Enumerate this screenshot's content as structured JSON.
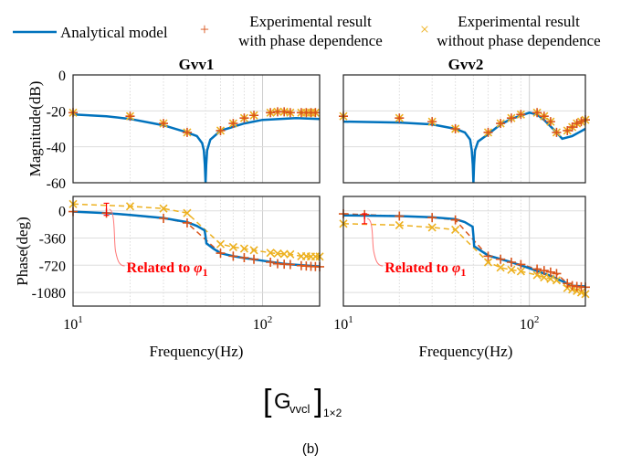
{
  "legend": {
    "analytical": "Analytical model",
    "with_phase": [
      "Experimental result",
      "with phase dependence"
    ],
    "without_phase": [
      "Experimental result",
      "without phase dependence"
    ]
  },
  "colors": {
    "analytical": "#0072BD",
    "with_phase": "#D95319",
    "without_phase": "#EDB120",
    "annotation": "#FF0000"
  },
  "caption": {
    "main": "G",
    "sub": "vvcl",
    "size": "1×2",
    "label": "(b)"
  },
  "chart_data": [
    {
      "type": "line",
      "title": "Gvv1",
      "xlabel": "Frequency(Hz)",
      "xscale": "log",
      "xlim": [
        10,
        200
      ],
      "xticks": [
        "10^1",
        "10^2"
      ],
      "grid": true,
      "magnitude": {
        "ylabel": "Magnitude(dB)",
        "ylim": [
          -60,
          0
        ],
        "yticks": [
          "0",
          "-20",
          "-40",
          "-60"
        ],
        "analytical": {
          "x": [
            10,
            15,
            20,
            30,
            40,
            45,
            48,
            49,
            49.6,
            50,
            50.4,
            51,
            53,
            60,
            80,
            100,
            150,
            200
          ],
          "y": [
            -22,
            -23,
            -24.5,
            -28,
            -32,
            -34,
            -38,
            -42,
            -50,
            -60,
            -50,
            -42,
            -36,
            -31,
            -27,
            -25,
            -24,
            -24.5
          ]
        },
        "with_phase": {
          "x": [
            10,
            20,
            30,
            40,
            60,
            70,
            80,
            90,
            110,
            120,
            130,
            140,
            160,
            170,
            180,
            190
          ],
          "y": [
            -21,
            -23,
            -27,
            -32,
            -31,
            -27,
            -24,
            -22.5,
            -21,
            -20.5,
            -20.5,
            -21,
            -21,
            -21,
            -21,
            -21
          ]
        },
        "without_phase": {
          "x": [
            10,
            20,
            30,
            40,
            60,
            70,
            80,
            90,
            110,
            120,
            130,
            140,
            160,
            170,
            180,
            190
          ],
          "y": [
            -21,
            -23,
            -27,
            -32,
            -31,
            -27,
            -24,
            -22.5,
            -21,
            -20.5,
            -20.5,
            -21,
            -21,
            -21,
            -21,
            -21
          ]
        }
      },
      "phase": {
        "ylabel": "Phase(deg)",
        "ylim": [
          -1260,
          190
        ],
        "yticks": [
          "0",
          "-360",
          "-720",
          "-1080"
        ],
        "analytical": {
          "x": [
            10,
            15,
            20,
            30,
            40,
            45,
            49.5,
            50,
            50.5,
            55,
            60,
            70,
            80,
            100,
            130,
            160,
            200
          ],
          "y": [
            -10,
            -30,
            -55,
            -95,
            -150,
            -200,
            -260,
            -340,
            -430,
            -500,
            -560,
            -600,
            -625,
            -660,
            -700,
            -720,
            -735
          ]
        },
        "with_phase": {
          "x": [
            10,
            15,
            30,
            40,
            60,
            70,
            80,
            90,
            110,
            120,
            130,
            140,
            160,
            170,
            180,
            190,
            200
          ],
          "y": [
            -10,
            -30,
            -100,
            -160,
            -560,
            -600,
            -620,
            -640,
            -680,
            -700,
            -705,
            -710,
            -725,
            -730,
            -735,
            -738,
            -740
          ]
        },
        "without_phase": {
          "x": [
            10,
            20,
            30,
            40,
            60,
            70,
            80,
            90,
            110,
            120,
            130,
            140,
            160,
            170,
            180,
            190,
            200
          ],
          "y": [
            90,
            60,
            30,
            -30,
            -440,
            -480,
            -500,
            -520,
            -555,
            -565,
            -570,
            -575,
            -600,
            -600,
            -605,
            -605,
            -605
          ]
        },
        "annotation": {
          "text": "Related to ",
          "symbol": "φ",
          "sub": "1",
          "x": 15
        }
      }
    },
    {
      "type": "line",
      "title": "Gvv2",
      "xlabel": "Frequency(Hz)",
      "xscale": "log",
      "xlim": [
        10,
        200
      ],
      "xticks": [
        "10^1",
        "10^2"
      ],
      "grid": true,
      "magnitude": {
        "ylim": [
          -60,
          0
        ],
        "analytical": {
          "x": [
            10,
            20,
            30,
            40,
            45,
            48,
            49,
            49.6,
            50,
            50.4,
            51,
            53,
            60,
            70,
            80,
            100,
            110,
            120,
            140,
            150,
            170,
            200
          ],
          "y": [
            -26,
            -26.5,
            -27.5,
            -30,
            -32,
            -36,
            -42,
            -50,
            -60,
            -50,
            -42,
            -37,
            -33,
            -27.5,
            -24.5,
            -21,
            -22,
            -25,
            -32,
            -35.5,
            -34,
            -30
          ]
        },
        "with_phase": {
          "x": [
            10,
            20,
            30,
            40,
            60,
            70,
            80,
            90,
            110,
            120,
            130,
            140,
            160,
            170,
            180,
            190,
            200
          ],
          "y": [
            -23,
            -24,
            -26,
            -30,
            -32,
            -27,
            -24,
            -22,
            -21,
            -23,
            -26,
            -32,
            -31,
            -29,
            -27,
            -26,
            -25
          ]
        },
        "without_phase": {
          "x": [
            10,
            20,
            30,
            40,
            60,
            70,
            80,
            90,
            110,
            120,
            130,
            140,
            160,
            170,
            180,
            190,
            200
          ],
          "y": [
            -23,
            -24,
            -26,
            -30,
            -32,
            -27,
            -24,
            -22,
            -21,
            -23,
            -26,
            -32,
            -31,
            -29,
            -27,
            -26,
            -25
          ]
        }
      },
      "phase": {
        "ylim": [
          -1260,
          190
        ],
        "analytical": {
          "x": [
            10,
            20,
            30,
            40,
            45,
            49.5,
            50,
            50.5,
            55,
            60,
            80,
            100,
            130,
            150,
            170,
            200
          ],
          "y": [
            -60,
            -70,
            -85,
            -110,
            -150,
            -210,
            -330,
            -470,
            -530,
            -590,
            -680,
            -760,
            -860,
            -930,
            -990,
            -1000
          ]
        },
        "with_phase": {
          "x": [
            10,
            13,
            20,
            30,
            40,
            60,
            70,
            80,
            90,
            110,
            120,
            130,
            140,
            160,
            170,
            180,
            190,
            200
          ],
          "y": [
            -40,
            -50,
            -70,
            -90,
            -120,
            -600,
            -640,
            -680,
            -710,
            -770,
            -790,
            -810,
            -830,
            -960,
            -990,
            -1000,
            -1005,
            -1010
          ]
        },
        "without_phase": {
          "x": [
            10,
            20,
            30,
            40,
            60,
            70,
            80,
            90,
            110,
            120,
            130,
            140,
            160,
            170,
            180,
            190,
            200
          ],
          "y": [
            -170,
            -190,
            -220,
            -250,
            -680,
            -750,
            -780,
            -800,
            -850,
            -880,
            -900,
            -920,
            -1020,
            -1040,
            -1060,
            -1080,
            -1100
          ]
        },
        "annotation": {
          "text": "Related to ",
          "symbol": "φ",
          "sub": "1",
          "x": 13
        }
      }
    }
  ]
}
